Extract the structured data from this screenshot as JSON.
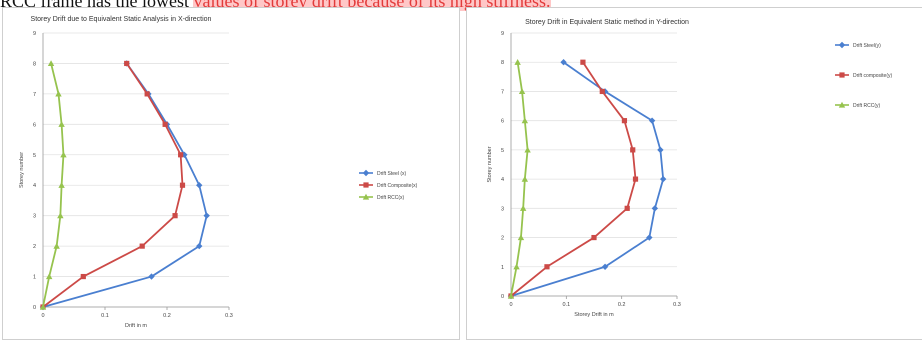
{
  "header_text": {
    "before": "RCC frame has the lowest ",
    "highlight": "values of storey drift because of its high stiffness."
  },
  "colors": {
    "steel": "#4a7fd0",
    "composite": "#cc4a47",
    "rcc": "#96c34e"
  },
  "chart_data": [
    {
      "type": "line",
      "title": "Storey Drift due to Equivalent Static Analysis in X-direction",
      "xlabel": "Drift in m",
      "ylabel": "Storey number",
      "xlim": [
        0,
        0.3
      ],
      "ylim": [
        0,
        9
      ],
      "xticks": [
        "0",
        "0.1",
        "0.2",
        "0.3"
      ],
      "yticks": [
        "0",
        "1",
        "2",
        "3",
        "4",
        "5",
        "6",
        "7",
        "8",
        "9"
      ],
      "grid": true,
      "legend_position": "right",
      "y": [
        0,
        1,
        2,
        3,
        4,
        5,
        6,
        7,
        8
      ],
      "series": [
        {
          "name": "Drift  Steel (x)",
          "x": [
            0,
            0.175,
            0.252,
            0.264,
            0.252,
            0.228,
            0.2,
            0.17,
            0.135
          ]
        },
        {
          "name": "Drift  Composite(x)",
          "x": [
            0,
            0.065,
            0.16,
            0.213,
            0.225,
            0.222,
            0.197,
            0.168,
            0.135
          ]
        },
        {
          "name": "Drift RCC(x)",
          "x": [
            0,
            0.01,
            0.022,
            0.028,
            0.03,
            0.033,
            0.03,
            0.025,
            0.013
          ]
        }
      ]
    },
    {
      "type": "line",
      "title": "Storey Drift in Equivalent Static method in Y-direction",
      "xlabel": "Storey Drift in m",
      "ylabel": "Storey number",
      "xlim": [
        0,
        0.3
      ],
      "ylim": [
        0,
        9
      ],
      "xticks": [
        "0",
        "0.1",
        "0.2",
        "0.3"
      ],
      "yticks": [
        "0",
        "1",
        "2",
        "3",
        "4",
        "5",
        "6",
        "7",
        "8",
        "9"
      ],
      "grid": true,
      "legend_position": "right",
      "y": [
        0,
        1,
        2,
        3,
        4,
        5,
        6,
        7,
        8
      ],
      "series": [
        {
          "name": "Drift Steel(y)",
          "x": [
            0,
            0.17,
            0.25,
            0.26,
            0.275,
            0.27,
            0.255,
            0.17,
            0.095
          ]
        },
        {
          "name": "Drift composite(y)",
          "x": [
            0,
            0.065,
            0.15,
            0.21,
            0.225,
            0.22,
            0.205,
            0.165,
            0.13
          ]
        },
        {
          "name": "Drift RCC(y)",
          "x": [
            0,
            0.01,
            0.018,
            0.022,
            0.025,
            0.03,
            0.025,
            0.02,
            0.012
          ]
        }
      ]
    }
  ]
}
